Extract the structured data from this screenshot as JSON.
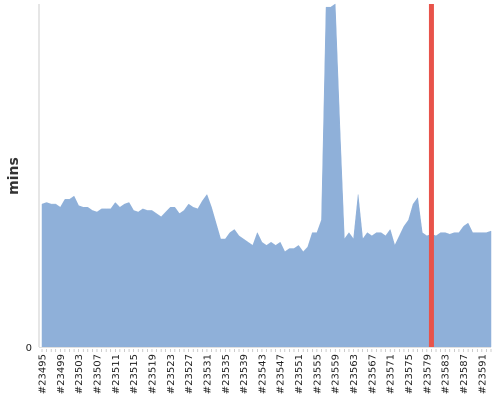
{
  "chart_data": {
    "type": "area",
    "ylabel": "mins",
    "y_tick_labels": [
      "0"
    ],
    "x_tick_labels": [
      "#23495",
      "#23499",
      "#23503",
      "#23507",
      "#23511",
      "#23515",
      "#23519",
      "#23523",
      "#23527",
      "#23531",
      "#23535",
      "#23539",
      "#23543",
      "#23547",
      "#23551",
      "#23555",
      "#23559",
      "#23563",
      "#23567",
      "#23571",
      "#23575",
      "#23579",
      "#23583",
      "#23587",
      "#23591"
    ],
    "x_start": 23495,
    "x_step": 1,
    "ylim": [
      0,
      108
    ],
    "values": [
      45,
      45.5,
      45,
      45,
      44,
      46.5,
      46.5,
      47.5,
      44.5,
      44,
      44,
      43,
      42.5,
      43.5,
      43.5,
      43.5,
      45.5,
      44,
      45,
      45.5,
      43,
      42.5,
      43.5,
      43,
      43,
      42,
      41,
      42.5,
      44,
      44,
      42,
      43,
      45,
      44,
      43.5,
      46,
      48,
      44,
      39,
      34,
      34,
      36,
      37,
      35,
      34,
      33,
      32,
      36,
      33,
      32,
      33,
      32,
      33,
      30,
      31,
      31,
      32,
      30,
      31.5,
      36,
      36,
      40,
      107,
      107,
      108,
      70,
      34,
      36,
      34,
      48,
      34,
      36,
      35,
      36,
      36,
      35,
      37,
      32,
      35,
      38,
      40,
      45,
      47,
      36,
      35,
      35.5,
      35,
      36,
      36,
      35.5,
      36,
      36,
      38,
      39,
      36,
      36,
      36,
      36,
      36.5
    ],
    "marker_x": 23580,
    "colors": {
      "area": "#8fb0d9",
      "marker": "#e8534a",
      "axis": "#cccccc"
    }
  }
}
